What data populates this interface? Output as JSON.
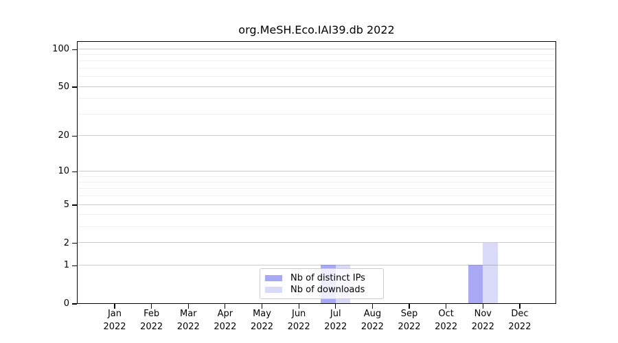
{
  "chart_data": {
    "type": "bar",
    "title": "org.MeSH.Eco.IAI39.db 2022",
    "categories": [
      {
        "month": "Jan",
        "year": "2022"
      },
      {
        "month": "Feb",
        "year": "2022"
      },
      {
        "month": "Mar",
        "year": "2022"
      },
      {
        "month": "Apr",
        "year": "2022"
      },
      {
        "month": "May",
        "year": "2022"
      },
      {
        "month": "Jun",
        "year": "2022"
      },
      {
        "month": "Jul",
        "year": "2022"
      },
      {
        "month": "Aug",
        "year": "2022"
      },
      {
        "month": "Sep",
        "year": "2022"
      },
      {
        "month": "Oct",
        "year": "2022"
      },
      {
        "month": "Nov",
        "year": "2022"
      },
      {
        "month": "Dec",
        "year": "2022"
      }
    ],
    "series": [
      {
        "name": "Nb of distinct IPs",
        "color": "#a9a9f3",
        "values": [
          0,
          0,
          0,
          0,
          0,
          0,
          1,
          0,
          0,
          0,
          1,
          0
        ]
      },
      {
        "name": "Nb of downloads",
        "color": "#d9d9f8",
        "values": [
          0,
          0,
          0,
          0,
          0,
          0,
          1,
          0,
          0,
          0,
          2,
          0
        ]
      }
    ],
    "yticks": [
      0,
      1,
      2,
      5,
      10,
      20,
      50,
      100
    ],
    "minor_grid_values": [
      3,
      4,
      6,
      7,
      8,
      9,
      30,
      40,
      60,
      70,
      80,
      90
    ],
    "yaxis_scale": "log1p",
    "ylim": [
      0,
      116
    ],
    "grid": "on",
    "legend_position": "lower center",
    "xlabel": "",
    "ylabel": ""
  }
}
